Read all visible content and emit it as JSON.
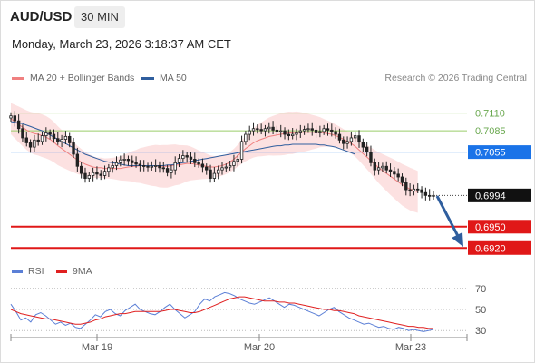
{
  "header": {
    "symbol": "AUD/USD",
    "timeframe": "30 MIN",
    "datetime": "Monday, March 23, 2026 3:18:37 AM CET"
  },
  "legend_main": [
    {
      "label": "MA 20 + Bollinger Bands",
      "color": "#f08080"
    },
    {
      "label": "MA 50",
      "color": "#2f5e9e"
    }
  ],
  "copyright": "Research © 2026 Trading Central",
  "legend_rsi": [
    {
      "label": "RSI",
      "color": "#5b7fd6"
    },
    {
      "label": "9MA",
      "color": "#e02020"
    }
  ],
  "colors": {
    "support": "#e01818",
    "pivot_box": "#1a73e8",
    "resistance": "#9acd6a",
    "arrow": "#2f5e9e",
    "price_box": "#111111",
    "candle": "#222222"
  },
  "chart_data": [
    {
      "type": "candlestick",
      "x_ticks": [
        "Mar 19",
        "Mar 20",
        "Mar 23"
      ],
      "ylim": [
        0.6905,
        0.7135
      ],
      "levels": [
        {
          "value": 0.711,
          "label": "0.7110",
          "kind": "resistance"
        },
        {
          "value": 0.7085,
          "label": "0.7085",
          "kind": "resistance"
        },
        {
          "value": 0.7055,
          "label": "0.7055",
          "kind": "pivot"
        },
        {
          "value": 0.6994,
          "label": "0.6994",
          "kind": "last"
        },
        {
          "value": 0.695,
          "label": "0.6950",
          "kind": "support"
        },
        {
          "value": 0.692,
          "label": "0.6920",
          "kind": "support"
        }
      ],
      "close": [
        0.7106,
        0.7099,
        0.7088,
        0.7075,
        0.7068,
        0.7062,
        0.7072,
        0.707,
        0.7078,
        0.7082,
        0.708,
        0.7074,
        0.707,
        0.7073,
        0.7077,
        0.7068,
        0.7052,
        0.7035,
        0.7025,
        0.7018,
        0.7022,
        0.7026,
        0.7024,
        0.7022,
        0.7028,
        0.7033,
        0.7036,
        0.704,
        0.7044,
        0.7045,
        0.7043,
        0.704,
        0.7038,
        0.7036,
        0.7035,
        0.7034,
        0.7035,
        0.7036,
        0.7033,
        0.7032,
        0.7026,
        0.703,
        0.704,
        0.7046,
        0.705,
        0.7048,
        0.7045,
        0.704,
        0.7038,
        0.7034,
        0.703,
        0.7018,
        0.7025,
        0.703,
        0.7033,
        0.7034,
        0.7036,
        0.7042,
        0.7045,
        0.707,
        0.708,
        0.7085,
        0.7088,
        0.7087,
        0.7085,
        0.7088,
        0.709,
        0.7086,
        0.7084,
        0.7085,
        0.708,
        0.7078,
        0.708,
        0.7082,
        0.7085,
        0.7087,
        0.7088,
        0.7086,
        0.7082,
        0.7084,
        0.7088,
        0.7086,
        0.7084,
        0.708,
        0.7072,
        0.7067,
        0.707,
        0.7075,
        0.7078,
        0.7069,
        0.7062,
        0.7055,
        0.704,
        0.703,
        0.7033,
        0.7035,
        0.703,
        0.7028,
        0.7024,
        0.702,
        0.7012,
        0.7002,
        0.7,
        0.7003,
        0.7002,
        0.6998,
        0.6994,
        0.6993,
        0.6994
      ],
      "ma20": [
        0.7102,
        0.7098,
        0.7094,
        0.709,
        0.7086,
        0.7083,
        0.7081,
        0.708,
        0.7078,
        0.7076,
        0.7073,
        0.7069,
        0.7064,
        0.706,
        0.7056,
        0.7052,
        0.7048,
        0.7044,
        0.7041,
        0.7038,
        0.7036,
        0.7034,
        0.7033,
        0.7033,
        0.7032,
        0.7032,
        0.7032,
        0.7032,
        0.7032,
        0.7033,
        0.7034,
        0.7035,
        0.7035,
        0.7036,
        0.7036,
        0.7036,
        0.7036,
        0.7036,
        0.7035,
        0.7035,
        0.7035,
        0.7036,
        0.7037,
        0.7037,
        0.7038,
        0.7039,
        0.7039,
        0.7038,
        0.7037,
        0.7036,
        0.7035,
        0.7034,
        0.7034,
        0.7035,
        0.7036,
        0.7038,
        0.7041,
        0.7045,
        0.705,
        0.7055,
        0.706,
        0.7064,
        0.7068,
        0.7071,
        0.7073,
        0.7075,
        0.7077,
        0.7078,
        0.7079,
        0.708,
        0.7081,
        0.7082,
        0.7082,
        0.7083,
        0.7083,
        0.7083,
        0.7083,
        0.7083,
        0.7083,
        0.7083,
        0.7082,
        0.7081,
        0.708,
        0.7078,
        0.7076,
        0.7073,
        0.707,
        0.7067,
        0.7063,
        0.7058,
        0.7053,
        0.7048,
        0.7043,
        0.7038,
        0.7033,
        0.7029,
        0.7025,
        0.7021,
        0.7017,
        0.7013,
        0.7009,
        0.7006,
        0.7003,
        0.7001,
        0.6999
      ],
      "ma50": [
        0.7098,
        0.7097,
        0.7096,
        0.7095,
        0.7093,
        0.7091,
        0.7089,
        0.7087,
        0.7085,
        0.7082,
        0.7079,
        0.7076,
        0.7073,
        0.707,
        0.7067,
        0.7064,
        0.7061,
        0.7058,
        0.7055,
        0.7052,
        0.705,
        0.7048,
        0.7046,
        0.7044,
        0.7042,
        0.7041,
        0.704,
        0.7039,
        0.7038,
        0.7037,
        0.7036,
        0.7036,
        0.7036,
        0.7036,
        0.7036,
        0.7036,
        0.7036,
        0.7036,
        0.7036,
        0.7036,
        0.7037,
        0.7037,
        0.7038,
        0.7039,
        0.704,
        0.7041,
        0.7042,
        0.7043,
        0.7044,
        0.7045,
        0.7046,
        0.7047,
        0.7048,
        0.7049,
        0.705,
        0.7051,
        0.7052,
        0.7053,
        0.7054,
        0.7055,
        0.7056,
        0.7057,
        0.7058,
        0.7059,
        0.706,
        0.7061,
        0.7062,
        0.7063,
        0.7064,
        0.7064,
        0.7065,
        0.7065,
        0.7066,
        0.7066,
        0.7066,
        0.7066,
        0.7066,
        0.7066,
        0.7066,
        0.7065,
        0.7065,
        0.7064,
        0.7063,
        0.7062,
        0.706,
        0.7058,
        0.7056,
        0.7054,
        0.7052
      ]
    },
    {
      "type": "line",
      "ylim": [
        25,
        75
      ],
      "y_ticks": [
        30,
        50,
        70
      ],
      "rsi": [
        55,
        48,
        40,
        42,
        38,
        45,
        47,
        44,
        40,
        36,
        38,
        35,
        37,
        33,
        32,
        36,
        40,
        45,
        43,
        48,
        50,
        46,
        44,
        49,
        52,
        55,
        50,
        48,
        46,
        45,
        48,
        52,
        55,
        50,
        46,
        42,
        45,
        48,
        55,
        60,
        58,
        62,
        64,
        66,
        65,
        63,
        60,
        58,
        56,
        55,
        57,
        59,
        61,
        58,
        55,
        52,
        55,
        54,
        52,
        50,
        48,
        46,
        44,
        47,
        50,
        52,
        48,
        45,
        42,
        40,
        38,
        36,
        37,
        35,
        33,
        34,
        32,
        31,
        33,
        32,
        30,
        31,
        30,
        29,
        30,
        31
      ],
      "ma9": [
        50,
        48,
        46,
        45,
        44,
        43,
        42,
        41,
        41,
        40,
        39,
        38,
        37,
        36,
        36,
        37,
        38,
        40,
        41,
        43,
        44,
        45,
        46,
        46,
        47,
        48,
        48,
        48,
        48,
        48,
        48,
        49,
        50,
        50,
        49,
        48,
        47,
        47,
        48,
        50,
        52,
        54,
        56,
        58,
        60,
        61,
        62,
        62,
        61,
        60,
        59,
        58,
        58,
        58,
        57,
        57,
        56,
        56,
        55,
        54,
        53,
        52,
        51,
        50,
        50,
        49,
        49,
        48,
        47,
        46,
        44,
        43,
        42,
        41,
        40,
        39,
        38,
        37,
        36,
        35,
        34,
        34,
        33,
        33,
        32,
        32
      ]
    }
  ]
}
